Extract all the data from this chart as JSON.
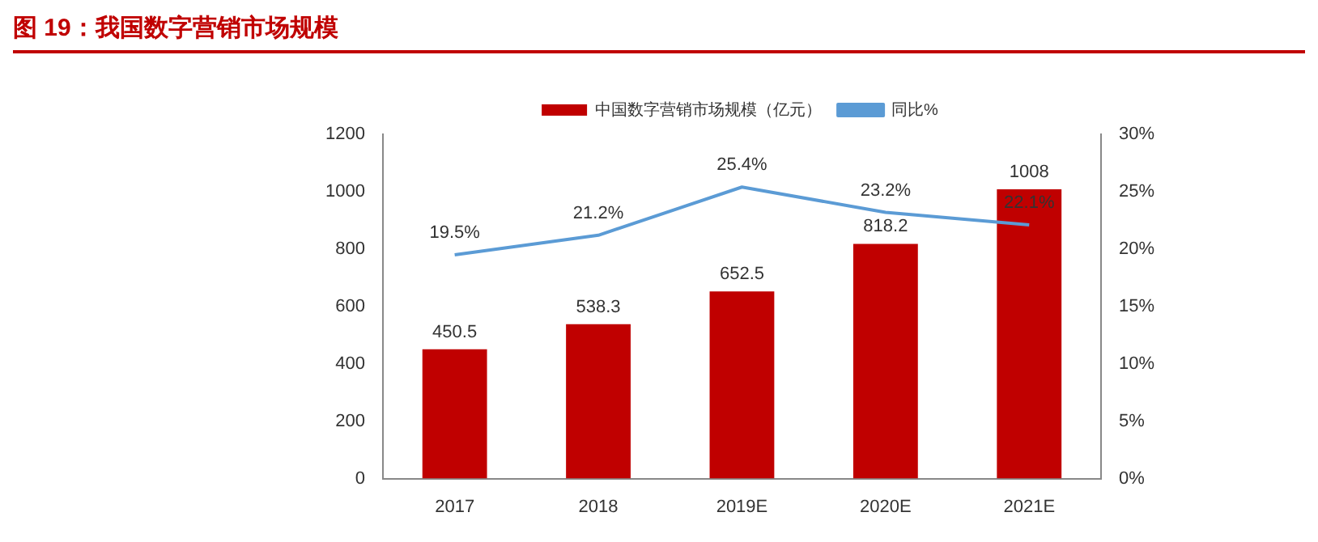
{
  "chart_data": {
    "type": "bar",
    "title": "图 19：我国数字营销市场规模",
    "categories": [
      "2017",
      "2018",
      "2019E",
      "2020E",
      "2021E"
    ],
    "series": [
      {
        "name": "中国数字营销市场规模（亿元）",
        "color": "#c00000",
        "values": [
          450.5,
          538.3,
          652.5,
          818.2,
          1008
        ],
        "value_labels": [
          "450.5",
          "538.3",
          "652.5",
          "818.2",
          "1008"
        ]
      },
      {
        "name": "同比%",
        "type": "line",
        "axis": "y2",
        "color": "#5b9bd5",
        "values": [
          19.5,
          21.2,
          25.4,
          23.2,
          22.1
        ],
        "value_labels": [
          "19.5%",
          "21.2%",
          "25.4%",
          "23.2%",
          "22.1%"
        ]
      }
    ],
    "ylim": [
      0,
      1200
    ],
    "yticks": [
      0,
      200,
      400,
      600,
      800,
      1000,
      1200
    ],
    "y2lim": [
      0,
      30
    ],
    "y2ticks": [
      {
        "value": 0,
        "label": "0%"
      },
      {
        "value": 5,
        "label": "5%"
      },
      {
        "value": 10,
        "label": "10%"
      },
      {
        "value": 15,
        "label": "15%"
      },
      {
        "value": 20,
        "label": "20%"
      },
      {
        "value": 25,
        "label": "25%"
      },
      {
        "value": 30,
        "label": "30%"
      }
    ],
    "legend": "top",
    "marker": "none",
    "line_style": "solid"
  }
}
